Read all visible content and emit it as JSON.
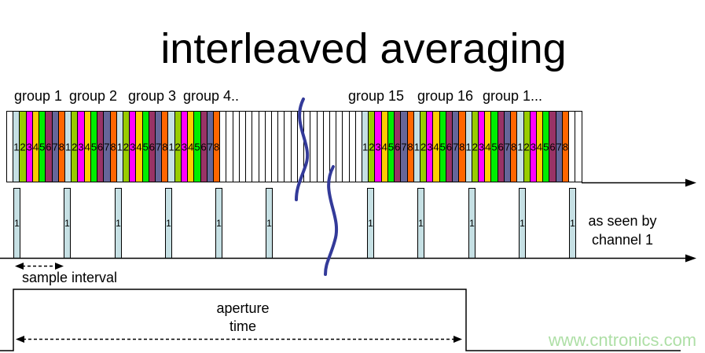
{
  "title": "interleaved averaging",
  "labels": {
    "left": [
      "group 1",
      "group 2",
      "group 3",
      "group 4.."
    ],
    "right": [
      "group 15",
      "group 16",
      "group 1..."
    ]
  },
  "strip": {
    "channel_numbers": [
      "1",
      "2",
      "3",
      "4",
      "5",
      "6",
      "7",
      "8"
    ],
    "channel_colors": [
      "#C6E0E4",
      "#99CC00",
      "#FF00FF",
      "#FFCC00",
      "#00EE00",
      "#993366",
      "#666699",
      "#FF6600"
    ],
    "segments": [
      {
        "type": "blank",
        "bars": 1
      },
      {
        "type": "groups",
        "count": 4
      },
      {
        "type": "blank",
        "bars": 22
      },
      {
        "type": "groups",
        "count": 4
      },
      {
        "type": "blank",
        "bars": 2
      }
    ]
  },
  "pulse_row": {
    "pulse_label": "1",
    "pulse_color": "#C6E0E4",
    "pulse_positions": [
      17,
      81,
      146,
      210,
      274,
      338,
      467,
      531,
      596,
      660,
      724
    ],
    "caption_line1": "as seen by",
    "caption_line2": "channel 1"
  },
  "sample_interval_label": "sample interval",
  "aperture_label_line1": "aperture",
  "aperture_label_line2": "time",
  "watermark": {
    "text": "www.cntronics.com",
    "color": "#AEDFA6"
  },
  "break_mark_color": "#333A99"
}
